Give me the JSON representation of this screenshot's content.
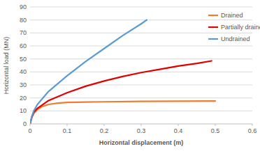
{
  "chart_data": {
    "type": "line",
    "x_label": "Horizontal displacement (m)",
    "y_label": "Horizontal load (MN)",
    "xlim": [
      0,
      0.6
    ],
    "xticks": [
      0,
      0.1,
      0.2,
      0.3,
      0.4,
      0.5,
      0.6
    ],
    "ylim": [
      0,
      90
    ],
    "yticks": [
      0,
      10,
      20,
      30,
      40,
      50,
      60,
      70,
      80,
      90
    ],
    "grid": true,
    "legend": "top-right",
    "series": [
      {
        "name": "Drained",
        "color": "#ed7d31",
        "x": [
          0,
          0.005,
          0.01,
          0.02,
          0.03,
          0.05,
          0.075,
          0.1,
          0.15,
          0.2,
          0.3,
          0.4,
          0.5
        ],
        "values": [
          0,
          5,
          8,
          11,
          13,
          15,
          16,
          16.5,
          16.8,
          17,
          17.3,
          17.5,
          17.6
        ]
      },
      {
        "name": "Partially drained",
        "color": "#e00000",
        "x": [
          0,
          0.005,
          0.01,
          0.02,
          0.05,
          0.1,
          0.15,
          0.2,
          0.25,
          0.3,
          0.35,
          0.4,
          0.45,
          0.49
        ],
        "values": [
          0,
          5.5,
          9,
          12,
          18,
          24,
          29,
          33,
          36.5,
          39.5,
          42,
          44.5,
          46.5,
          48.5
        ]
      },
      {
        "name": "Undrained",
        "color": "#5b9bd5",
        "x": [
          0,
          0.005,
          0.01,
          0.02,
          0.05,
          0.1,
          0.15,
          0.2,
          0.25,
          0.3,
          0.315
        ],
        "values": [
          0,
          6,
          10,
          15,
          25,
          37,
          48,
          58,
          68,
          77,
          80
        ]
      }
    ]
  }
}
